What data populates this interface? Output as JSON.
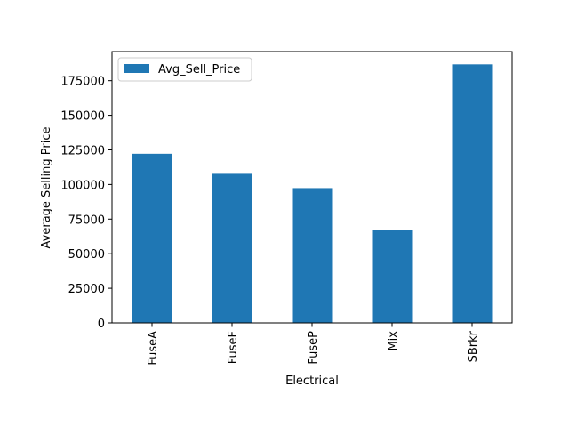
{
  "chart_data": {
    "type": "bar",
    "title": "",
    "xlabel": "Electrical",
    "ylabel": "Average Selling Price",
    "categories": [
      "FuseA",
      "FuseF",
      "FuseP",
      "Mix",
      "SBrkr"
    ],
    "series": [
      {
        "name": "Avg_Sell_Price",
        "values": [
          122200,
          107700,
          97400,
          67000,
          186800
        ]
      }
    ],
    "ylim": [
      0,
      196000
    ],
    "yticks": [
      0,
      25000,
      50000,
      75000,
      100000,
      125000,
      150000,
      175000
    ],
    "ytick_labels": [
      "0",
      "25000",
      "50000",
      "75000",
      "100000",
      "125000",
      "150000",
      "175000"
    ],
    "grid": false,
    "legend": {
      "position": "top-left",
      "entries": [
        "Avg_Sell_Price"
      ]
    },
    "colors": {
      "bar": "#1f77b4"
    },
    "xtick_rotation": "vertical"
  }
}
